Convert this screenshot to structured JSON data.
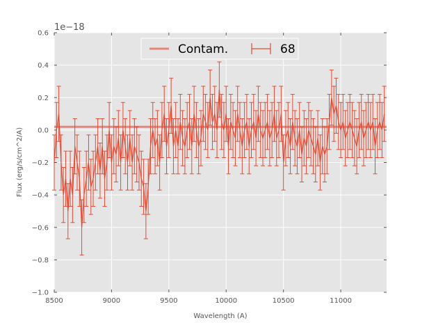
{
  "chart_data": {
    "type": "line",
    "title": "",
    "xlabel": "Wavelength (A)",
    "ylabel": "Flux (erg/s/cm^2/A)",
    "y_offset_label": "1e−18",
    "xlim": [
      8500,
      11400
    ],
    "ylim": [
      -1.0,
      0.6
    ],
    "xticks": [
      8500,
      9000,
      9500,
      10000,
      10500,
      11000
    ],
    "yticks": [
      -1.0,
      -0.8,
      -0.6,
      -0.4,
      -0.2,
      0.0,
      0.2,
      0.4,
      0.6
    ],
    "ytick_labels": [
      "−1.0",
      "−0.8",
      "−0.6",
      "−0.4",
      "−0.2",
      "0.0",
      "0.2",
      "0.4",
      "0.6"
    ],
    "grid": true,
    "legend_position": "top-center",
    "colors": {
      "plot_bg": "#e5e5e5",
      "series": "#e24a33",
      "contam": "#e8857a",
      "grid": "#ffffff"
    },
    "series": [
      {
        "name": "Contam.",
        "kind": "line",
        "x": [
          8500,
          11400
        ],
        "y": [
          0.02,
          0.02
        ]
      },
      {
        "name": "68",
        "kind": "errorbar",
        "x_start": 8500,
        "x_step": 20,
        "y": [
          -0.2,
          0.0,
          0.1,
          -0.2,
          -0.4,
          -0.3,
          -0.5,
          -0.3,
          -0.4,
          -0.1,
          -0.2,
          -0.3,
          -0.6,
          -0.4,
          -0.3,
          -0.2,
          -0.35,
          -0.3,
          -0.2,
          -0.1,
          -0.25,
          -0.1,
          -0.3,
          -0.2,
          0.0,
          -0.2,
          -0.1,
          -0.15,
          -0.05,
          -0.2,
          0.0,
          -0.1,
          -0.2,
          -0.05,
          -0.2,
          -0.1,
          -0.15,
          -0.2,
          -0.3,
          -0.35,
          -0.5,
          -0.35,
          -0.1,
          0.0,
          -0.1,
          -0.05,
          -0.2,
          0.0,
          0.1,
          -0.1,
          0.0,
          0.15,
          -0.1,
          0.0,
          -0.1,
          0.05,
          -0.05,
          -0.1,
          0.0,
          0.05,
          -0.1,
          0.1,
          0.0,
          -0.1,
          -0.05,
          0.1,
          0.05,
          0.0,
          0.2,
          0.05,
          0.1,
          0.0,
          0.25,
          0.05,
          0.0,
          0.1,
          -0.1,
          0.05,
          0.0,
          -0.05,
          0.1,
          0.0,
          -0.1,
          0.0,
          0.05,
          -0.1,
          0.0,
          0.05,
          -0.05,
          0.1,
          0.0,
          -0.05,
          0.0,
          0.05,
          -0.05,
          0.0,
          0.1,
          -0.05,
          0.0,
          0.1,
          -0.2,
          -0.05,
          0.0,
          -0.1,
          0.05,
          -0.05,
          -0.1,
          0.0,
          -0.15,
          -0.05,
          -0.1,
          0.0,
          -0.05,
          -0.1,
          -0.15,
          -0.05,
          -0.2,
          -0.1,
          -0.15,
          -0.1,
          0.05,
          0.2,
          0.1,
          0.15,
          0.05,
          0.0,
          0.05,
          -0.05,
          0.0,
          0.05,
          0.0,
          -0.05,
          -0.1,
          0.0,
          0.05,
          -0.05,
          0.0,
          0.05,
          0.0,
          0.05,
          -0.1,
          0.0,
          0.05,
          0.0,
          0.1
        ],
        "yerr": 0.17
      }
    ]
  }
}
